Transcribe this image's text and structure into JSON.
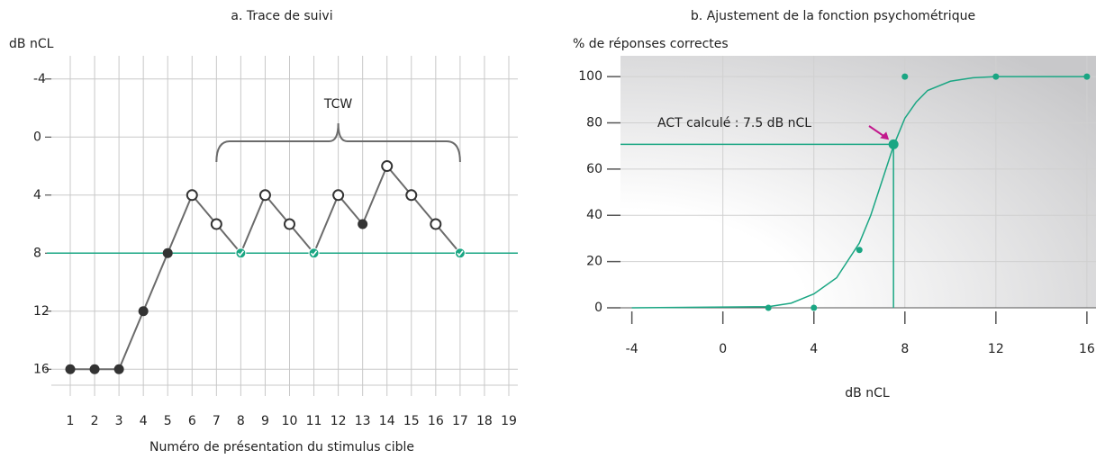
{
  "chart_data": [
    {
      "type": "line",
      "title": "a. Trace de suivi",
      "y_label": "dB nCL",
      "x_label": "Numéro de présentation du stimulus cible",
      "categories": [
        "1",
        "2",
        "3",
        "4",
        "5",
        "6",
        "7",
        "8",
        "9",
        "10",
        "11",
        "12",
        "13",
        "14",
        "15",
        "16",
        "17",
        "18",
        "19"
      ],
      "series": [
        {
          "color": "#6b6b6b",
          "values": [
            16,
            16,
            16,
            12,
            8,
            4,
            6,
            8,
            4,
            6,
            8,
            4,
            6,
            2,
            4,
            6,
            8,
            null,
            null
          ],
          "markers": [
            "filled",
            "filled",
            "filled",
            "filled",
            "filled",
            "open",
            "open",
            "check",
            "open",
            "open",
            "check",
            "open",
            "filled",
            "open",
            "open",
            "open",
            "check",
            null,
            null
          ]
        }
      ],
      "ylim": [
        -5.6,
        17.1
      ],
      "y_inverted": true,
      "yticks": [
        -4,
        0,
        4,
        8,
        12,
        16
      ],
      "grid": true,
      "reference_line": {
        "value": 8,
        "color": "#1aa683"
      },
      "annotation": {
        "text": "TCW",
        "from": 7,
        "to": 17
      }
    },
    {
      "type": "scatter",
      "title": "b. Ajustement de la fonction psychométrique",
      "y_label": "% de réponses correctes",
      "x_label": "dB nCL",
      "x": [
        2,
        4,
        6,
        8,
        12,
        16
      ],
      "values": [
        0,
        0,
        25,
        100,
        100,
        100
      ],
      "color": "#1aa683",
      "fit": {
        "x": [
          -4,
          2,
          3,
          4,
          5,
          6,
          6.5,
          7,
          7.5,
          8,
          8.5,
          9,
          10,
          11,
          12,
          16
        ],
        "values": [
          0,
          0.5,
          2,
          6,
          13,
          28,
          40,
          55,
          70,
          82,
          89,
          94,
          98,
          99.5,
          100,
          100
        ]
      },
      "xlim": [
        -4.5,
        16.4
      ],
      "xticks": [
        -4,
        0,
        4,
        8,
        12,
        16
      ],
      "ylim": [
        0,
        109
      ],
      "yticks": [
        0,
        20,
        40,
        60,
        80,
        100
      ],
      "grid": true,
      "marker": {
        "x": 7.5,
        "y": 70.7,
        "text": "ACT calculé : 7.5 dB nCL",
        "color": "#c2198d"
      }
    }
  ]
}
